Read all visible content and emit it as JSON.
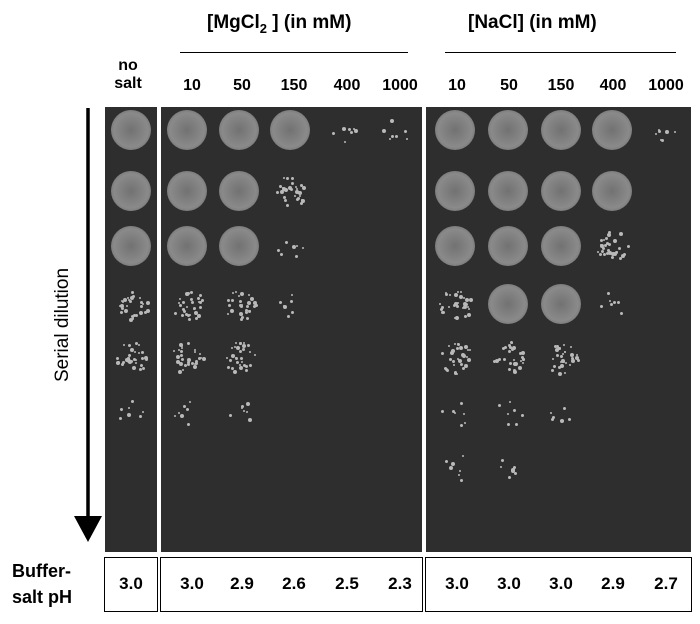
{
  "headers": {
    "mgcl2_prefix": "[MgCl",
    "mgcl2_sub": "2",
    "mgcl2_suffix": " ] (in mM)",
    "nacl": "[NaCl] (in mM)"
  },
  "columns": {
    "no_salt": [
      "no",
      "salt"
    ],
    "mgcl2": [
      "10",
      "50",
      "150",
      "400",
      "1000"
    ],
    "nacl": [
      "10",
      "50",
      "150",
      "400",
      "1000"
    ]
  },
  "side_label": "Serial dilution",
  "ph": {
    "row_label": [
      "Buffer-",
      "salt pH"
    ],
    "no_salt": "3.0",
    "mgcl2": [
      "3.0",
      "2.9",
      "2.6",
      "2.5",
      "2.3"
    ],
    "nacl": [
      "3.0",
      "3.0",
      "3.0",
      "2.9",
      "2.7"
    ]
  },
  "colors": {
    "background": "#ffffff",
    "plate": "#2e2e2e",
    "growth": "#8a8a8a",
    "colony": "#b9b9b9"
  }
}
